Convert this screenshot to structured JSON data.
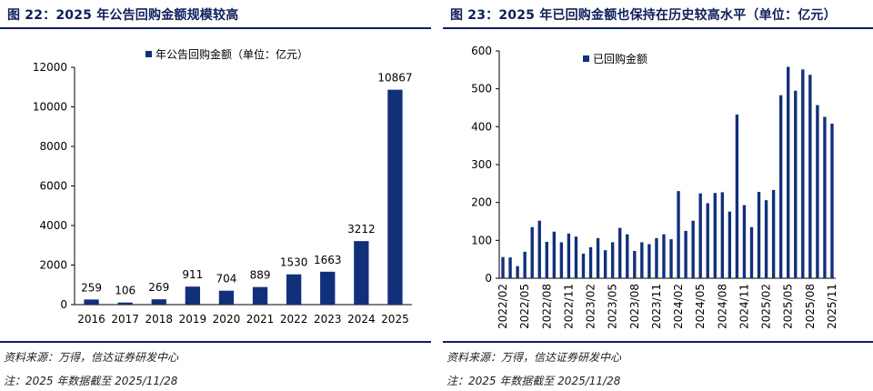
{
  "left": {
    "title": "图 22：2025 年公告回购金额规模较高",
    "source": "资料来源：万得，信达证券研发中心",
    "note": "注：2025 年数据截至 2025/11/28"
  },
  "right": {
    "title": "图 23：2025 年已回购金额也保持在历史较高水平（单位：亿元）",
    "source": "资料来源：万得，信达证券研发中心",
    "note": "注：2025 年数据截至 2025/11/28"
  },
  "chart_data": [
    {
      "type": "bar",
      "title": "",
      "xlabel": "",
      "ylabel": "",
      "ylim": [
        0,
        12000
      ],
      "yticks": [
        0,
        2000,
        4000,
        6000,
        8000,
        10000,
        12000
      ],
      "grid": false,
      "legend_position": "top",
      "categories": [
        "2016",
        "2017",
        "2018",
        "2019",
        "2020",
        "2021",
        "2022",
        "2023",
        "2024",
        "2025"
      ],
      "series": [
        {
          "name": "年公告回购金额（单位：亿元）",
          "color": "#12307a",
          "values": [
            259,
            106,
            269,
            911,
            704,
            889,
            1530,
            1663,
            3212,
            10867
          ]
        }
      ],
      "data_labels": [
        "259",
        "106",
        "269",
        "911",
        "704",
        "889",
        "1530",
        "1663",
        "3212",
        "10867"
      ]
    },
    {
      "type": "bar",
      "title": "",
      "xlabel": "",
      "ylabel": "",
      "ylim": [
        0,
        600
      ],
      "yticks": [
        0,
        100,
        200,
        300,
        400,
        500,
        600
      ],
      "grid": false,
      "legend_position": "top-left",
      "categories": [
        "2022/02",
        "2022/03",
        "2022/04",
        "2022/05",
        "2022/06",
        "2022/07",
        "2022/08",
        "2022/09",
        "2022/10",
        "2022/11",
        "2022/12",
        "2023/01",
        "2023/02",
        "2023/03",
        "2023/04",
        "2023/05",
        "2023/06",
        "2023/07",
        "2023/08",
        "2023/09",
        "2023/10",
        "2023/11",
        "2023/12",
        "2024/01",
        "2024/02",
        "2024/03",
        "2024/04",
        "2024/05",
        "2024/06",
        "2024/07",
        "2024/08",
        "2024/09",
        "2024/10",
        "2024/11",
        "2024/12",
        "2025/01",
        "2025/02",
        "2025/03",
        "2025/04",
        "2025/05",
        "2025/06",
        "2025/07",
        "2025/08",
        "2025/09",
        "2025/10",
        "2025/11"
      ],
      "tick_labels": [
        "2022/02",
        "2022/05",
        "2022/08",
        "2022/11",
        "2023/02",
        "2023/05",
        "2023/08",
        "2023/11",
        "2024/02",
        "2024/05",
        "2024/08",
        "2024/11",
        "2025/02",
        "2025/05",
        "2025/08",
        "2025/11"
      ],
      "series": [
        {
          "name": "已回购金额",
          "color": "#12307a",
          "values": [
            56,
            55,
            32,
            70,
            135,
            152,
            96,
            123,
            95,
            118,
            110,
            65,
            82,
            106,
            74,
            95,
            133,
            116,
            72,
            95,
            90,
            106,
            116,
            103,
            230,
            125,
            152,
            224,
            198,
            225,
            227,
            176,
            432,
            193,
            135,
            228,
            206,
            233,
            483,
            558,
            495,
            551,
            537,
            457,
            426,
            408
          ]
        }
      ]
    }
  ]
}
